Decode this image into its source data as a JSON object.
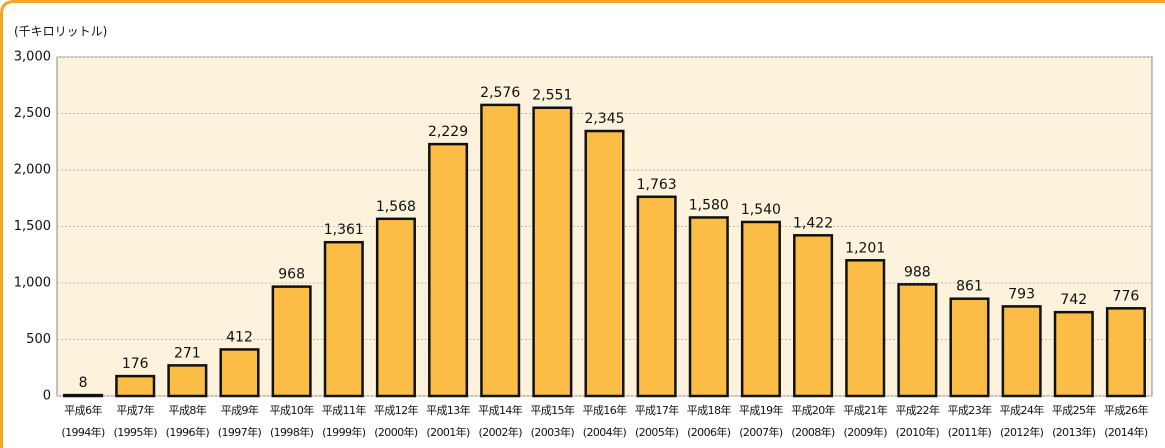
{
  "chart_data": {
    "type": "bar",
    "y_label": "(千キロリットル)",
    "categories": [
      [
        "平成6年",
        "(1994年)"
      ],
      [
        "平成7年",
        "(1995年)"
      ],
      [
        "平成8年",
        "(1996年)"
      ],
      [
        "平成9年",
        "(1997年)"
      ],
      [
        "平成10年",
        "(1998年)"
      ],
      [
        "平成11年",
        "(1999年)"
      ],
      [
        "平成12年",
        "(2000年)"
      ],
      [
        "平成13年",
        "(2001年)"
      ],
      [
        "平成14年",
        "(2002年)"
      ],
      [
        "平成15年",
        "(2003年)"
      ],
      [
        "平成16年",
        "(2004年)"
      ],
      [
        "平成17年",
        "(2005年)"
      ],
      [
        "平成18年",
        "(2006年)"
      ],
      [
        "平成19年",
        "(2007年)"
      ],
      [
        "平成20年",
        "(2008年)"
      ],
      [
        "平成21年",
        "(2009年)"
      ],
      [
        "平成22年",
        "(2010年)"
      ],
      [
        "平成23年",
        "(2011年)"
      ],
      [
        "平成24年",
        "(2012年)"
      ],
      [
        "平成25年",
        "(2013年)"
      ],
      [
        "平成26年",
        "(2014年)"
      ]
    ],
    "values": [
      8,
      176,
      271,
      412,
      968,
      1361,
      1568,
      2229,
      2576,
      2551,
      2345,
      1763,
      1580,
      1540,
      1422,
      1201,
      988,
      861,
      793,
      742,
      776
    ],
    "value_labels": [
      "8",
      "176",
      "271",
      "412",
      "968",
      "1,361",
      "1,568",
      "2,229",
      "2,576",
      "2,551",
      "2,345",
      "1,763",
      "1,580",
      "1,540",
      "1,422",
      "1,201",
      "988",
      "861",
      "793",
      "742",
      "776"
    ],
    "color": "#fbbd45",
    "ylim": [
      0,
      3000
    ],
    "yticks": [
      0,
      500,
      {
        "value": 1000,
        "label": "1,000"
      },
      {
        "value": 1500,
        "label": "1,500"
      },
      {
        "value": 2000,
        "label": "2,000"
      },
      {
        "value": 2500,
        "label": "2,500"
      },
      {
        "value": 3000,
        "label": "3,000"
      }
    ],
    "grid": true
  }
}
